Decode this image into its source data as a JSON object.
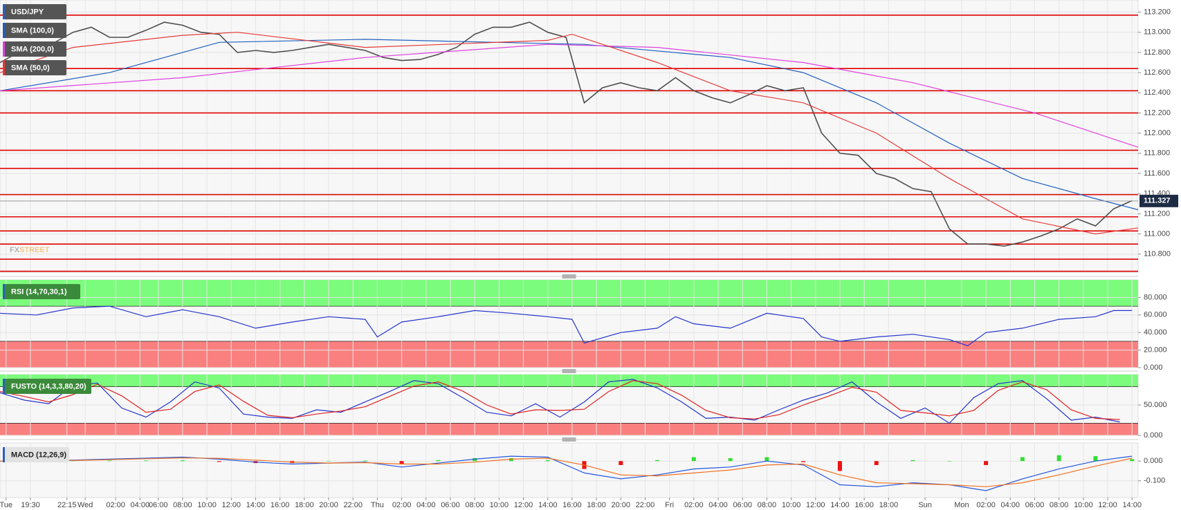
{
  "chart_data": [
    {
      "type": "line",
      "title": "USD/JPY",
      "xlim": [
        0,
        187
      ],
      "ylim": [
        110.62,
        113.32
      ],
      "yticks": [
        {
          "value": 110.8,
          "label": "110.800"
        },
        {
          "value": 111.0,
          "label": "111.000"
        },
        {
          "value": 111.2,
          "label": "111.200"
        },
        {
          "value": 111.4,
          "label": "111.400"
        },
        {
          "value": 111.6,
          "label": "111.600"
        },
        {
          "value": 111.8,
          "label": "111.800"
        },
        {
          "value": 112.0,
          "label": "112.000"
        },
        {
          "value": 112.2,
          "label": "112.200"
        },
        {
          "value": 112.4,
          "label": "112.400"
        },
        {
          "value": 112.6,
          "label": "112.600"
        },
        {
          "value": 112.8,
          "label": "112.800"
        },
        {
          "value": 113.0,
          "label": "113.000"
        },
        {
          "value": 113.2,
          "label": "113.200"
        }
      ],
      "levels": [
        113.17,
        112.64,
        112.42,
        112.2,
        111.83,
        111.65,
        111.39,
        111.17,
        111.03,
        110.9,
        110.75,
        110.63
      ],
      "level_color": "#e00000",
      "last_price": 111.327,
      "watermark": {
        "prefix": "FX",
        "suffix": "STREET"
      },
      "series": [
        {
          "color": "#4d4d4d",
          "x": [
            0,
            3,
            6,
            9,
            12,
            15,
            18,
            21,
            24,
            27,
            30,
            33,
            36,
            39,
            42,
            45,
            48,
            51,
            54,
            57,
            60,
            63,
            66,
            69,
            72,
            75,
            78,
            81,
            84,
            87,
            90,
            93,
            96,
            99,
            102,
            105,
            108,
            111,
            114,
            117,
            120,
            123,
            126,
            129,
            132,
            135,
            138,
            141,
            144,
            147,
            150,
            153,
            156,
            159,
            162,
            165,
            168,
            171,
            174,
            177,
            180,
            183,
            186
          ],
          "values": [
            112.7,
            112.8,
            112.85,
            112.9,
            113.0,
            113.05,
            112.95,
            112.95,
            113.02,
            113.1,
            113.07,
            113.0,
            112.98,
            112.8,
            112.82,
            112.8,
            112.82,
            112.85,
            112.88,
            112.85,
            112.82,
            112.75,
            112.72,
            112.73,
            112.78,
            112.85,
            112.98,
            113.05,
            113.05,
            113.1,
            113.0,
            112.95,
            112.3,
            112.45,
            112.5,
            112.45,
            112.42,
            112.55,
            112.42,
            112.35,
            112.3,
            112.38,
            112.47,
            112.42,
            112.45,
            112.0,
            111.8,
            111.78,
            111.6,
            111.55,
            111.45,
            111.42,
            111.05,
            110.9,
            110.9,
            110.88,
            110.92,
            110.98,
            111.05,
            111.15,
            111.08,
            111.25,
            111.33
          ]
        },
        {
          "name": "SMA (100,0)",
          "color": "#1f5fbf",
          "x": [
            0,
            18,
            36,
            60,
            96,
            120,
            132,
            144,
            156,
            168,
            180,
            187
          ],
          "values": [
            112.42,
            112.6,
            112.9,
            112.93,
            112.88,
            112.75,
            112.6,
            112.3,
            111.9,
            111.55,
            111.35,
            111.24
          ]
        },
        {
          "name": "SMA (200,0)",
          "color": "#e040e0",
          "x": [
            0,
            30,
            60,
            90,
            108,
            132,
            150,
            170,
            187
          ],
          "values": [
            112.42,
            112.55,
            112.75,
            112.88,
            112.85,
            112.7,
            112.5,
            112.2,
            111.86
          ]
        },
        {
          "name": "SMA (50,0)",
          "color": "#e53935",
          "x": [
            0,
            12,
            30,
            39,
            60,
            90,
            94,
            108,
            120,
            132,
            144,
            156,
            168,
            180,
            187
          ],
          "values": [
            112.6,
            112.85,
            112.97,
            113.0,
            112.85,
            112.92,
            112.98,
            112.7,
            112.42,
            112.3,
            112.0,
            111.55,
            111.15,
            111.0,
            111.06
          ]
        }
      ]
    },
    {
      "type": "line",
      "title": "RSI (14,70,30,1)",
      "xlim": [
        0,
        187
      ],
      "ylim": [
        0,
        100
      ],
      "yticks": [
        {
          "value": 0,
          "label": "0.000"
        },
        {
          "value": 20,
          "label": "20.000"
        },
        {
          "value": 40,
          "label": "40.000"
        },
        {
          "value": 60,
          "label": "60.000"
        },
        {
          "value": 80,
          "label": "80.000"
        }
      ],
      "bands": [
        {
          "from": 70,
          "to": 100,
          "color": "#7cfc7c"
        },
        {
          "from": 0,
          "to": 30,
          "color": "#fa8080"
        }
      ],
      "series": [
        {
          "color": "#2233cc",
          "x": [
            0,
            6,
            12,
            18,
            24,
            30,
            36,
            42,
            48,
            54,
            60,
            62,
            66,
            72,
            78,
            84,
            90,
            94,
            96,
            102,
            108,
            111,
            114,
            120,
            126,
            132,
            135,
            138,
            144,
            150,
            156,
            159,
            162,
            168,
            174,
            180,
            183,
            186
          ],
          "values": [
            62,
            60,
            68,
            70,
            58,
            66,
            58,
            45,
            52,
            58,
            55,
            35,
            52,
            58,
            65,
            62,
            58,
            55,
            28,
            40,
            45,
            58,
            50,
            45,
            62,
            56,
            35,
            30,
            35,
            38,
            32,
            25,
            40,
            45,
            55,
            58,
            65,
            65
          ]
        }
      ]
    },
    {
      "type": "line",
      "title": "FUSTO (14,3,3,80,20)",
      "xlim": [
        0,
        187
      ],
      "ylim": [
        0,
        100
      ],
      "yticks": [
        {
          "value": 0,
          "label": "0.000"
        },
        {
          "value": 50,
          "label": "50.000"
        }
      ],
      "bands": [
        {
          "from": 80,
          "to": 100,
          "color": "#7cfc7c"
        },
        {
          "from": 0,
          "to": 20,
          "color": "#fa8080"
        }
      ],
      "series": [
        {
          "color": "#2233cc",
          "x": [
            0,
            4,
            8,
            12,
            16,
            20,
            24,
            28,
            32,
            36,
            40,
            44,
            48,
            52,
            56,
            60,
            64,
            68,
            72,
            76,
            80,
            84,
            88,
            92,
            96,
            100,
            104,
            108,
            112,
            116,
            120,
            124,
            128,
            132,
            136,
            140,
            144,
            148,
            152,
            156,
            160,
            164,
            168,
            172,
            176,
            180,
            184
          ],
          "values": [
            70,
            58,
            52,
            82,
            86,
            45,
            30,
            55,
            88,
            78,
            35,
            30,
            28,
            42,
            38,
            55,
            72,
            90,
            85,
            62,
            38,
            32,
            52,
            30,
            55,
            88,
            92,
            78,
            55,
            28,
            30,
            25,
            42,
            58,
            70,
            88,
            55,
            28,
            45,
            20,
            62,
            85,
            90,
            60,
            25,
            30,
            22
          ]
        },
        {
          "color": "#e02020",
          "x": [
            0,
            4,
            8,
            12,
            16,
            20,
            24,
            28,
            32,
            36,
            40,
            44,
            48,
            52,
            56,
            60,
            64,
            68,
            72,
            76,
            80,
            84,
            88,
            92,
            96,
            100,
            104,
            108,
            112,
            116,
            120,
            124,
            128,
            132,
            136,
            140,
            144,
            148,
            152,
            156,
            160,
            164,
            168,
            172,
            176,
            180,
            184
          ],
          "values": [
            72,
            64,
            55,
            67,
            84,
            65,
            38,
            43,
            72,
            83,
            56,
            33,
            29,
            35,
            40,
            47,
            64,
            81,
            88,
            73,
            50,
            35,
            42,
            41,
            43,
            72,
            90,
            85,
            66,
            41,
            29,
            27,
            34,
            50,
            64,
            79,
            71,
            41,
            37,
            32,
            41,
            74,
            88,
            75,
            42,
            28,
            26
          ]
        }
      ]
    },
    {
      "type": "line",
      "title": "MACD (12,26,9)",
      "xlim": [
        0,
        187
      ],
      "ylim": [
        -0.185,
        0.092
      ],
      "yticks": [
        {
          "value": -0.1,
          "label": "-0.100"
        },
        {
          "value": 0,
          "label": "0.000"
        }
      ],
      "xticks": [
        {
          "value": 1,
          "label": "Tue"
        },
        {
          "value": 5,
          "label": "19:30"
        },
        {
          "value": 11,
          "label": "22:15"
        },
        {
          "value": 14,
          "label": "Wed"
        },
        {
          "value": 19,
          "label": "02:00"
        },
        {
          "value": 23,
          "label": "04:00"
        },
        {
          "value": 26,
          "label": "06:00"
        },
        {
          "value": 30,
          "label": "08:00"
        },
        {
          "value": 34,
          "label": "10:00"
        },
        {
          "value": 38,
          "label": "12:00"
        },
        {
          "value": 42,
          "label": "14:00"
        },
        {
          "value": 46,
          "label": "16:00"
        },
        {
          "value": 50,
          "label": "18:00"
        },
        {
          "value": 54,
          "label": "20:00"
        },
        {
          "value": 58,
          "label": "22:00"
        },
        {
          "value": 62,
          "label": "Thu"
        },
        {
          "value": 66,
          "label": "02:00"
        },
        {
          "value": 70,
          "label": "04:00"
        },
        {
          "value": 74,
          "label": "06:00"
        },
        {
          "value": 78,
          "label": "08:00"
        },
        {
          "value": 82,
          "label": "10:00"
        },
        {
          "value": 86,
          "label": "12:00"
        },
        {
          "value": 90,
          "label": "14:00"
        },
        {
          "value": 94,
          "label": "16:00"
        },
        {
          "value": 98,
          "label": "18:00"
        },
        {
          "value": 102,
          "label": "20:00"
        },
        {
          "value": 106,
          "label": "22:00"
        },
        {
          "value": 110,
          "label": "Fri"
        },
        {
          "value": 114,
          "label": "02:00"
        },
        {
          "value": 118,
          "label": "04:00"
        },
        {
          "value": 122,
          "label": "06:00"
        },
        {
          "value": 126,
          "label": "08:00"
        },
        {
          "value": 130,
          "label": "10:00"
        },
        {
          "value": 134,
          "label": "12:00"
        },
        {
          "value": 138,
          "label": "14:00"
        },
        {
          "value": 142,
          "label": "16:00"
        },
        {
          "value": 146,
          "label": "18:00"
        },
        {
          "value": 152,
          "label": "Sun"
        },
        {
          "value": 158,
          "label": "Mon"
        },
        {
          "value": 162,
          "label": "02:00"
        },
        {
          "value": 166,
          "label": "04:00"
        },
        {
          "value": 170,
          "label": "06:00"
        },
        {
          "value": 174,
          "label": "08:00"
        },
        {
          "value": 178,
          "label": "10:00"
        },
        {
          "value": 182,
          "label": "12:00"
        },
        {
          "value": 186,
          "label": "14:00"
        }
      ],
      "series": [
        {
          "type": "histogram",
          "color": "#33dd33",
          "negative_color": "#ee1111",
          "x": [
            0,
            6,
            12,
            18,
            24,
            30,
            36,
            42,
            48,
            54,
            60,
            66,
            72,
            78,
            84,
            90,
            96,
            102,
            108,
            114,
            120,
            126,
            132,
            138,
            144,
            150,
            156,
            162,
            168,
            174,
            180,
            186
          ],
          "values": [
            0,
            0.002,
            0.002,
            0.003,
            0.003,
            0.004,
            -0.004,
            -0.01,
            -0.01,
            0,
            0.003,
            -0.015,
            0.005,
            0.015,
            0.015,
            0.005,
            -0.04,
            -0.02,
            0.005,
            0.02,
            0.015,
            0.02,
            -0.005,
            -0.05,
            -0.02,
            0.005,
            0,
            -0.02,
            0.02,
            0.03,
            0.025,
            0.01
          ]
        },
        {
          "color": "#2255dd",
          "x": [
            0,
            6,
            12,
            18,
            24,
            30,
            36,
            42,
            48,
            54,
            60,
            66,
            72,
            78,
            84,
            90,
            96,
            102,
            108,
            114,
            120,
            126,
            132,
            138,
            144,
            150,
            156,
            162,
            168,
            174,
            180,
            186
          ],
          "values": [
            0.0,
            0.002,
            0.005,
            0.01,
            0.015,
            0.02,
            0.01,
            -0.005,
            -0.015,
            -0.01,
            -0.005,
            -0.03,
            -0.01,
            0.01,
            0.025,
            0.02,
            -0.06,
            -0.09,
            -0.07,
            -0.04,
            -0.03,
            0.0,
            -0.02,
            -0.12,
            -0.13,
            -0.11,
            -0.12,
            -0.15,
            -0.09,
            -0.04,
            0.0,
            0.025
          ]
        },
        {
          "color": "#f07020",
          "x": [
            0,
            6,
            12,
            18,
            24,
            30,
            36,
            42,
            48,
            54,
            60,
            66,
            72,
            78,
            84,
            90,
            96,
            102,
            108,
            114,
            120,
            126,
            132,
            138,
            144,
            150,
            156,
            162,
            168,
            174,
            180,
            186
          ],
          "values": [
            0.0,
            0.0,
            0.003,
            0.007,
            0.012,
            0.016,
            0.014,
            0.005,
            -0.005,
            -0.01,
            -0.008,
            -0.015,
            -0.015,
            -0.005,
            0.01,
            0.015,
            -0.02,
            -0.07,
            -0.075,
            -0.06,
            -0.045,
            -0.02,
            -0.015,
            -0.07,
            -0.11,
            -0.115,
            -0.12,
            -0.13,
            -0.11,
            -0.07,
            -0.025,
            0.015
          ]
        }
      ]
    }
  ]
}
